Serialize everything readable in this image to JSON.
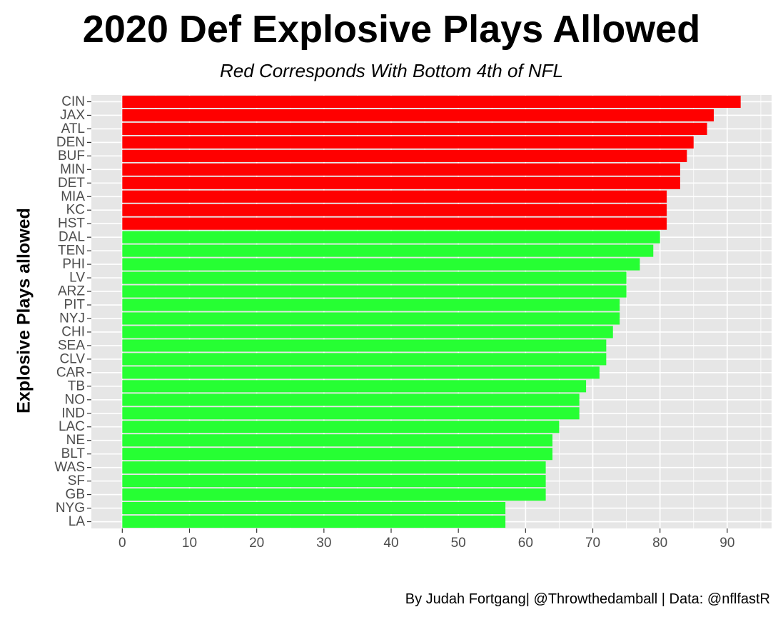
{
  "chart_data": {
    "type": "bar",
    "orientation": "horizontal",
    "title": "2020 Def Explosive Plays Allowed",
    "subtitle": "Red Corresponds With Bottom 4th of NFL",
    "xlabel": "",
    "ylabel": "Explosive Plays allowed",
    "caption": "By Judah Fortgang| @Throwthedamball | Data: @nflfastR",
    "categories": [
      "CIN",
      "JAX",
      "ATL",
      "DEN",
      "BUF",
      "MIN",
      "DET",
      "MIA",
      "KC",
      "HST",
      "DAL",
      "TEN",
      "PHI",
      "LV",
      "ARZ",
      "PIT",
      "NYJ",
      "CHI",
      "SEA",
      "CLV",
      "CAR",
      "TB",
      "NO",
      "IND",
      "LAC",
      "NE",
      "BLT",
      "WAS",
      "SF",
      "GB",
      "NYG",
      "LA"
    ],
    "values": [
      92,
      88,
      87,
      85,
      84,
      83,
      83,
      81,
      81,
      81,
      80,
      79,
      77,
      75,
      75,
      74,
      74,
      73,
      72,
      72,
      71,
      69,
      68,
      68,
      65,
      64,
      64,
      63,
      63,
      63,
      57,
      57
    ],
    "groups": [
      "bottom",
      "bottom",
      "bottom",
      "bottom",
      "bottom",
      "bottom",
      "bottom",
      "bottom",
      "bottom",
      "bottom",
      "other",
      "other",
      "other",
      "other",
      "other",
      "other",
      "other",
      "other",
      "other",
      "other",
      "other",
      "other",
      "other",
      "other",
      "other",
      "other",
      "other",
      "other",
      "other",
      "other",
      "other",
      "other"
    ],
    "colors": {
      "bottom": "#ff0000",
      "other": "#26ff33",
      "panel": "#e6e6e6",
      "grid": "#ffffff"
    },
    "x_ticks": [
      0,
      10,
      20,
      30,
      40,
      50,
      60,
      70,
      80,
      90
    ],
    "xlim": [
      -4.6,
      96.6
    ],
    "grid": true,
    "legend": "none"
  }
}
